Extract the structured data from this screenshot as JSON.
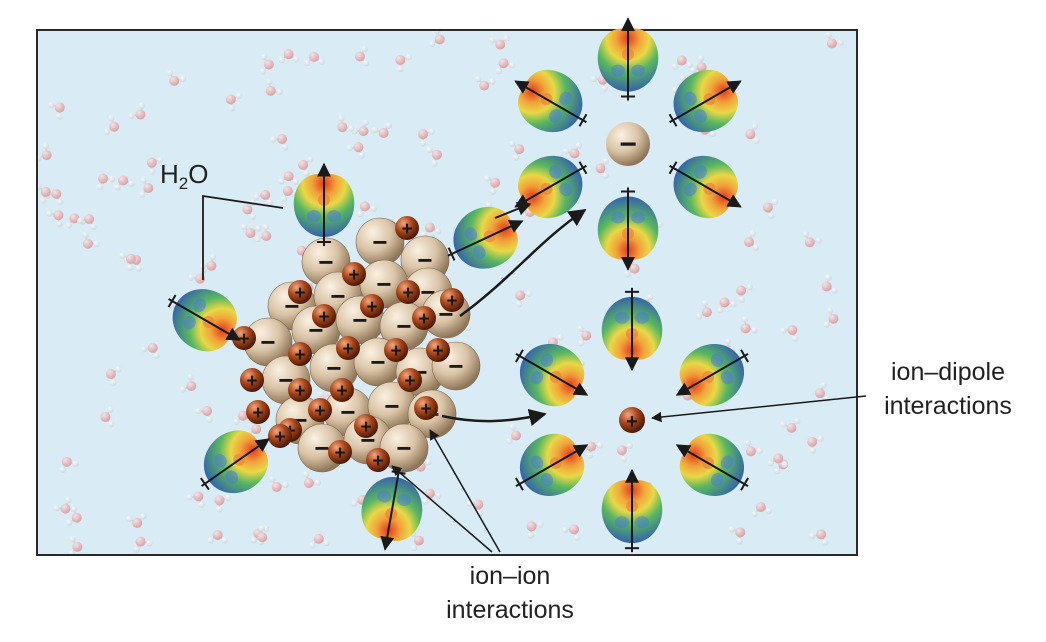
{
  "labels": {
    "water": "H",
    "water_sub": "2",
    "water_tail": "O",
    "ion_dipole_line1": "ion–dipole",
    "ion_dipole_line2": "interactions",
    "ion_ion_line1": "ion–ion",
    "ion_ion_line2": "interactions"
  },
  "signs": {
    "cation": "+",
    "anion": "−",
    "dipole_positive": "+"
  },
  "colors": {
    "solution": "#d9ecf6",
    "frame": "#2a2a2a",
    "anion": "#d9c3a6",
    "cation": "#a8461c",
    "water_positive_end": "#2f55b8",
    "water_negative_end": "#e23a1e",
    "background_oxygen": "#e8a7a7",
    "background_hydrogen": "#f4f4f4"
  }
}
